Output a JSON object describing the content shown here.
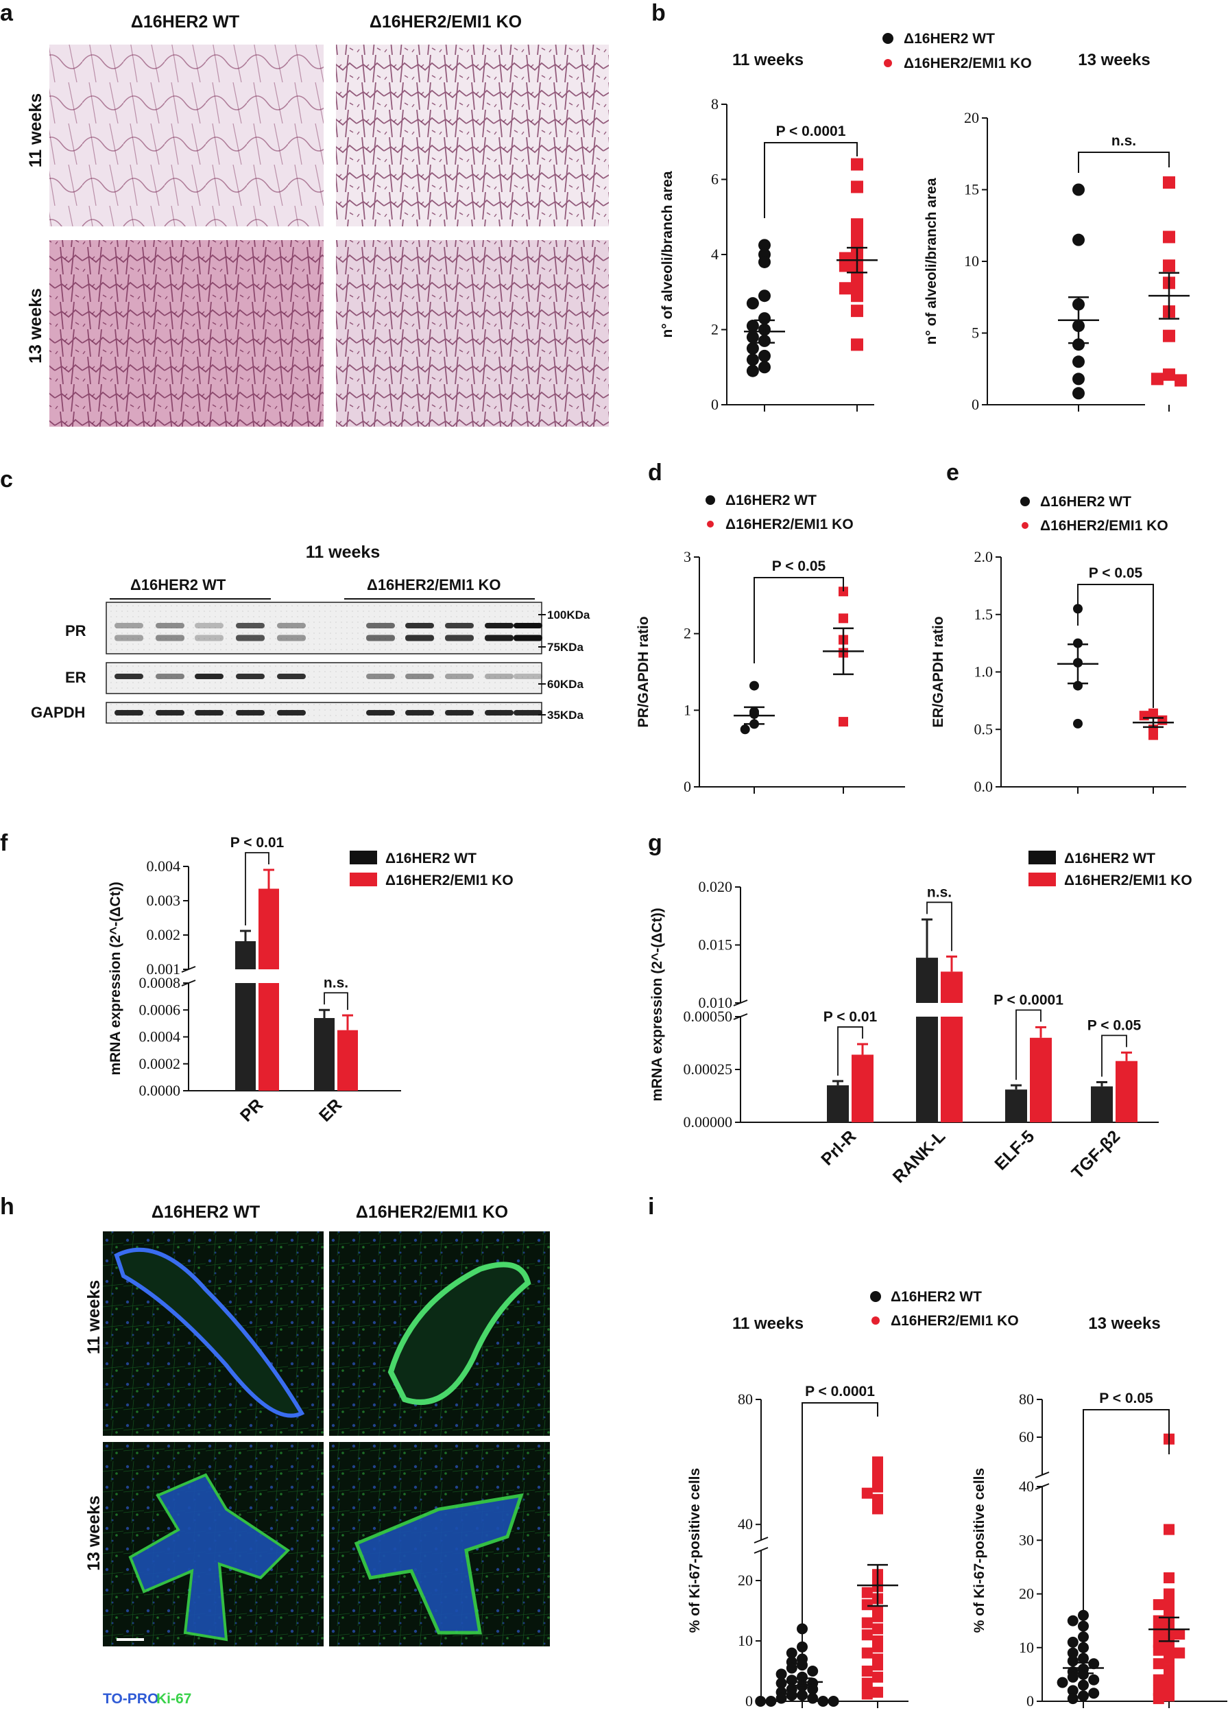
{
  "panels": {
    "a": {
      "label": "a",
      "col_headers": [
        "Δ16HER2 WT",
        "Δ16HER2/EMI1 KO"
      ],
      "row_headers": [
        "11 weeks",
        "13 weeks"
      ]
    },
    "b": {
      "label": "b"
    },
    "c": {
      "label": "c",
      "title": "11 weeks",
      "group_labels": [
        "Δ16HER2 WT",
        "Δ16HER2/EMI1 KO"
      ],
      "row_labels": [
        "PR",
        "ER",
        "GAPDH"
      ],
      "markers": [
        "100KDa",
        "75KDa",
        "60KDa",
        "35KDa"
      ]
    },
    "d": {
      "label": "d"
    },
    "e": {
      "label": "e"
    },
    "f": {
      "label": "f"
    },
    "g": {
      "label": "g"
    },
    "h": {
      "label": "h",
      "col_headers": [
        "Δ16HER2 WT",
        "Δ16HER2/EMI1 KO"
      ],
      "row_headers": [
        "11 weeks",
        "13 weeks"
      ],
      "stain_topro": "TO-PRO",
      "stain_ki67": "Ki-67"
    },
    "i": {
      "label": "i"
    }
  },
  "legend": {
    "wt": "Δ16HER2 WT",
    "ko": "Δ16HER2/EMI1 KO"
  },
  "colors": {
    "wt": "#111111",
    "ko": "#e5202e",
    "whole_mount": "#7a2a55",
    "topro": "#2f5bd6",
    "ki67": "#39d24a"
  },
  "chart_data": [
    {
      "id": "b1",
      "type": "scatter",
      "subtitle": "11 weeks",
      "ylabel": "n° of alveoli/branch area",
      "ylim": [
        0,
        8
      ],
      "yticks": [
        0,
        2,
        4,
        6,
        8
      ],
      "annotation": "P < 0.0001",
      "series": [
        {
          "name": "Δ16HER2 WT",
          "values": [
            4.25,
            4.0,
            3.8,
            2.9,
            2.7,
            2.3,
            2.1,
            2.0,
            1.8,
            1.7,
            1.5,
            1.3,
            1.2,
            1.0,
            0.9
          ],
          "mean": 1.95,
          "sem": 0.3
        },
        {
          "name": "Δ16HER2/EMI1 KO",
          "values": [
            6.4,
            5.8,
            4.8,
            4.5,
            4.3,
            4.0,
            3.9,
            3.8,
            3.7,
            3.5,
            3.2,
            3.1,
            2.9,
            2.5,
            1.6
          ],
          "mean": 3.85,
          "sem": 0.33
        }
      ]
    },
    {
      "id": "b2",
      "type": "scatter",
      "subtitle": "13 weeks",
      "ylabel": "n° of alveoli/branch area",
      "ylim": [
        0,
        20
      ],
      "yticks": [
        0,
        5,
        10,
        15,
        20
      ],
      "annotation": "n.s.",
      "series": [
        {
          "name": "Δ16HER2 WT",
          "values": [
            15.0,
            11.5,
            7.0,
            5.5,
            4.2,
            3.0,
            1.8,
            0.8
          ],
          "mean": 5.9,
          "sem": 1.6
        },
        {
          "name": "Δ16HER2/EMI1 KO",
          "values": [
            15.5,
            11.7,
            9.7,
            8.5,
            6.5,
            4.8,
            2.1,
            1.8,
            1.7
          ],
          "mean": 7.6,
          "sem": 1.6
        }
      ]
    },
    {
      "id": "d",
      "type": "scatter",
      "ylabel": "PR/GAPDH ratio",
      "ylim": [
        0,
        3
      ],
      "yticks": [
        0,
        1,
        2,
        3
      ],
      "annotation": "P < 0.05",
      "series": [
        {
          "name": "Δ16HER2 WT",
          "values": [
            1.32,
            0.98,
            0.95,
            0.82,
            0.75
          ],
          "mean": 0.93,
          "sem": 0.11
        },
        {
          "name": "Δ16HER2/EMI1 KO",
          "values": [
            2.55,
            2.2,
            1.92,
            1.75,
            0.85
          ],
          "mean": 1.77,
          "sem": 0.3
        }
      ]
    },
    {
      "id": "e",
      "type": "scatter",
      "ylabel": "ER/GAPDH ratio",
      "ylim": [
        0,
        2
      ],
      "yticks": [
        "0.0",
        "0.5",
        "1.0",
        "1.5",
        "2.0"
      ],
      "annotation": "P < 0.05",
      "series": [
        {
          "name": "Δ16HER2 WT",
          "values": [
            1.55,
            1.25,
            1.08,
            0.88,
            0.55
          ],
          "mean": 1.07,
          "sem": 0.17
        },
        {
          "name": "Δ16HER2/EMI1 KO",
          "values": [
            0.64,
            0.62,
            0.58,
            0.5,
            0.45
          ],
          "mean": 0.56,
          "sem": 0.04
        }
      ]
    },
    {
      "id": "f",
      "type": "bar",
      "ylabel": "mRNA expression (2^-(ΔCt))",
      "categories": [
        "PR",
        "ER"
      ],
      "segments": [
        {
          "range": [
            0.001,
            0.004
          ],
          "ticks": [
            "0.001",
            "0.002",
            "0.003",
            "0.004"
          ]
        },
        {
          "range": [
            0,
            0.0008
          ],
          "ticks": [
            "0.0000",
            "0.0002",
            "0.0004",
            "0.0006",
            "0.0008"
          ]
        }
      ],
      "annotations": [
        "P < 0.01",
        "n.s."
      ],
      "series": [
        {
          "name": "Δ16HER2 WT",
          "values": [
            0.00182,
            0.00054
          ],
          "errors": [
            0.0003,
            6e-05
          ]
        },
        {
          "name": "Δ16HER2/EMI1 KO",
          "values": [
            0.00335,
            0.00045
          ],
          "errors": [
            0.00055,
            0.00011
          ]
        }
      ]
    },
    {
      "id": "g",
      "type": "bar",
      "ylabel": "mRNA expression (2^-(ΔCt))",
      "categories": [
        "Prl-R",
        "RANK-L",
        "ELF-5",
        "TGF-β2"
      ],
      "segments": [
        {
          "range": [
            0.01,
            0.02
          ],
          "ticks": [
            "0.010",
            "0.015",
            "0.020"
          ]
        },
        {
          "range": [
            0,
            0.0005
          ],
          "ticks": [
            "0.00000",
            "0.00025",
            "0.00050"
          ]
        }
      ],
      "annotations": [
        "P < 0.01",
        "n.s.",
        "P < 0.0001",
        "P < 0.05"
      ],
      "series": [
        {
          "name": "Δ16HER2 WT",
          "values": [
            0.000175,
            0.0139,
            0.000155,
            0.00017
          ],
          "errors": [
            2e-05,
            0.0033,
            2e-05,
            2e-05
          ]
        },
        {
          "name": "Δ16HER2/EMI1 KO",
          "values": [
            0.00032,
            0.0127,
            0.0004,
            0.00029
          ],
          "errors": [
            5e-05,
            0.0013,
            5e-05,
            4e-05
          ]
        }
      ]
    },
    {
      "id": "i1",
      "type": "scatter",
      "subtitle": "11 weeks",
      "ylabel": "% of Ki-67-positive cells",
      "segments": [
        {
          "range": [
            0,
            25
          ],
          "ticks": [
            "0",
            "10",
            "20"
          ]
        },
        {
          "range": [
            35,
            80
          ],
          "ticks": [
            "40",
            "80"
          ]
        }
      ],
      "annotation": "P < 0.0001",
      "series": [
        {
          "name": "Δ16HER2 WT",
          "values": [
            12,
            9,
            8,
            7,
            6.5,
            6,
            5.5,
            5,
            4.5,
            4,
            3.5,
            3,
            3,
            2.5,
            2,
            2,
            1.5,
            1,
            1,
            0.5,
            0.5,
            0,
            0,
            0,
            0
          ],
          "mean": 3.2,
          "sem": 0.6
        },
        {
          "name": "Δ16HER2/EMI1 KO",
          "values": [
            60,
            58,
            55,
            52,
            50,
            48,
            45,
            21,
            20,
            19,
            18,
            17,
            16,
            15,
            14,
            13,
            12,
            11,
            10,
            9,
            8,
            7,
            6,
            5,
            4,
            3,
            1.5,
            1.2
          ],
          "mean": 19.2,
          "sem": 3.4
        }
      ]
    },
    {
      "id": "i2",
      "type": "scatter",
      "subtitle": "13 weeks",
      "ylabel": "% of Ki-67-positive cells",
      "segments": [
        {
          "range": [
            0,
            40
          ],
          "ticks": [
            "0",
            "10",
            "20",
            "30",
            "40"
          ]
        },
        {
          "range": [
            40,
            80
          ],
          "ticks": [
            "40",
            "60",
            "80"
          ]
        }
      ],
      "annotation": "P < 0.05",
      "series": [
        {
          "name": "Δ16HER2 WT",
          "values": [
            16,
            15,
            14,
            12,
            11,
            10,
            9,
            8,
            7.5,
            7,
            6,
            5.5,
            5,
            4.5,
            4,
            3.5,
            3,
            2,
            1.5,
            1,
            0.5
          ],
          "mean": 6.2,
          "sem": 1.0
        },
        {
          "name": "Δ16HER2/EMI1 KO",
          "values": [
            59,
            32,
            23,
            20,
            19,
            18,
            17,
            16,
            15,
            14,
            13,
            12.5,
            12,
            11,
            10,
            9.5,
            9,
            8,
            7,
            6,
            5,
            4,
            3,
            2,
            1,
            0.5
          ],
          "mean": 13.4,
          "sem": 2.2
        }
      ]
    }
  ]
}
